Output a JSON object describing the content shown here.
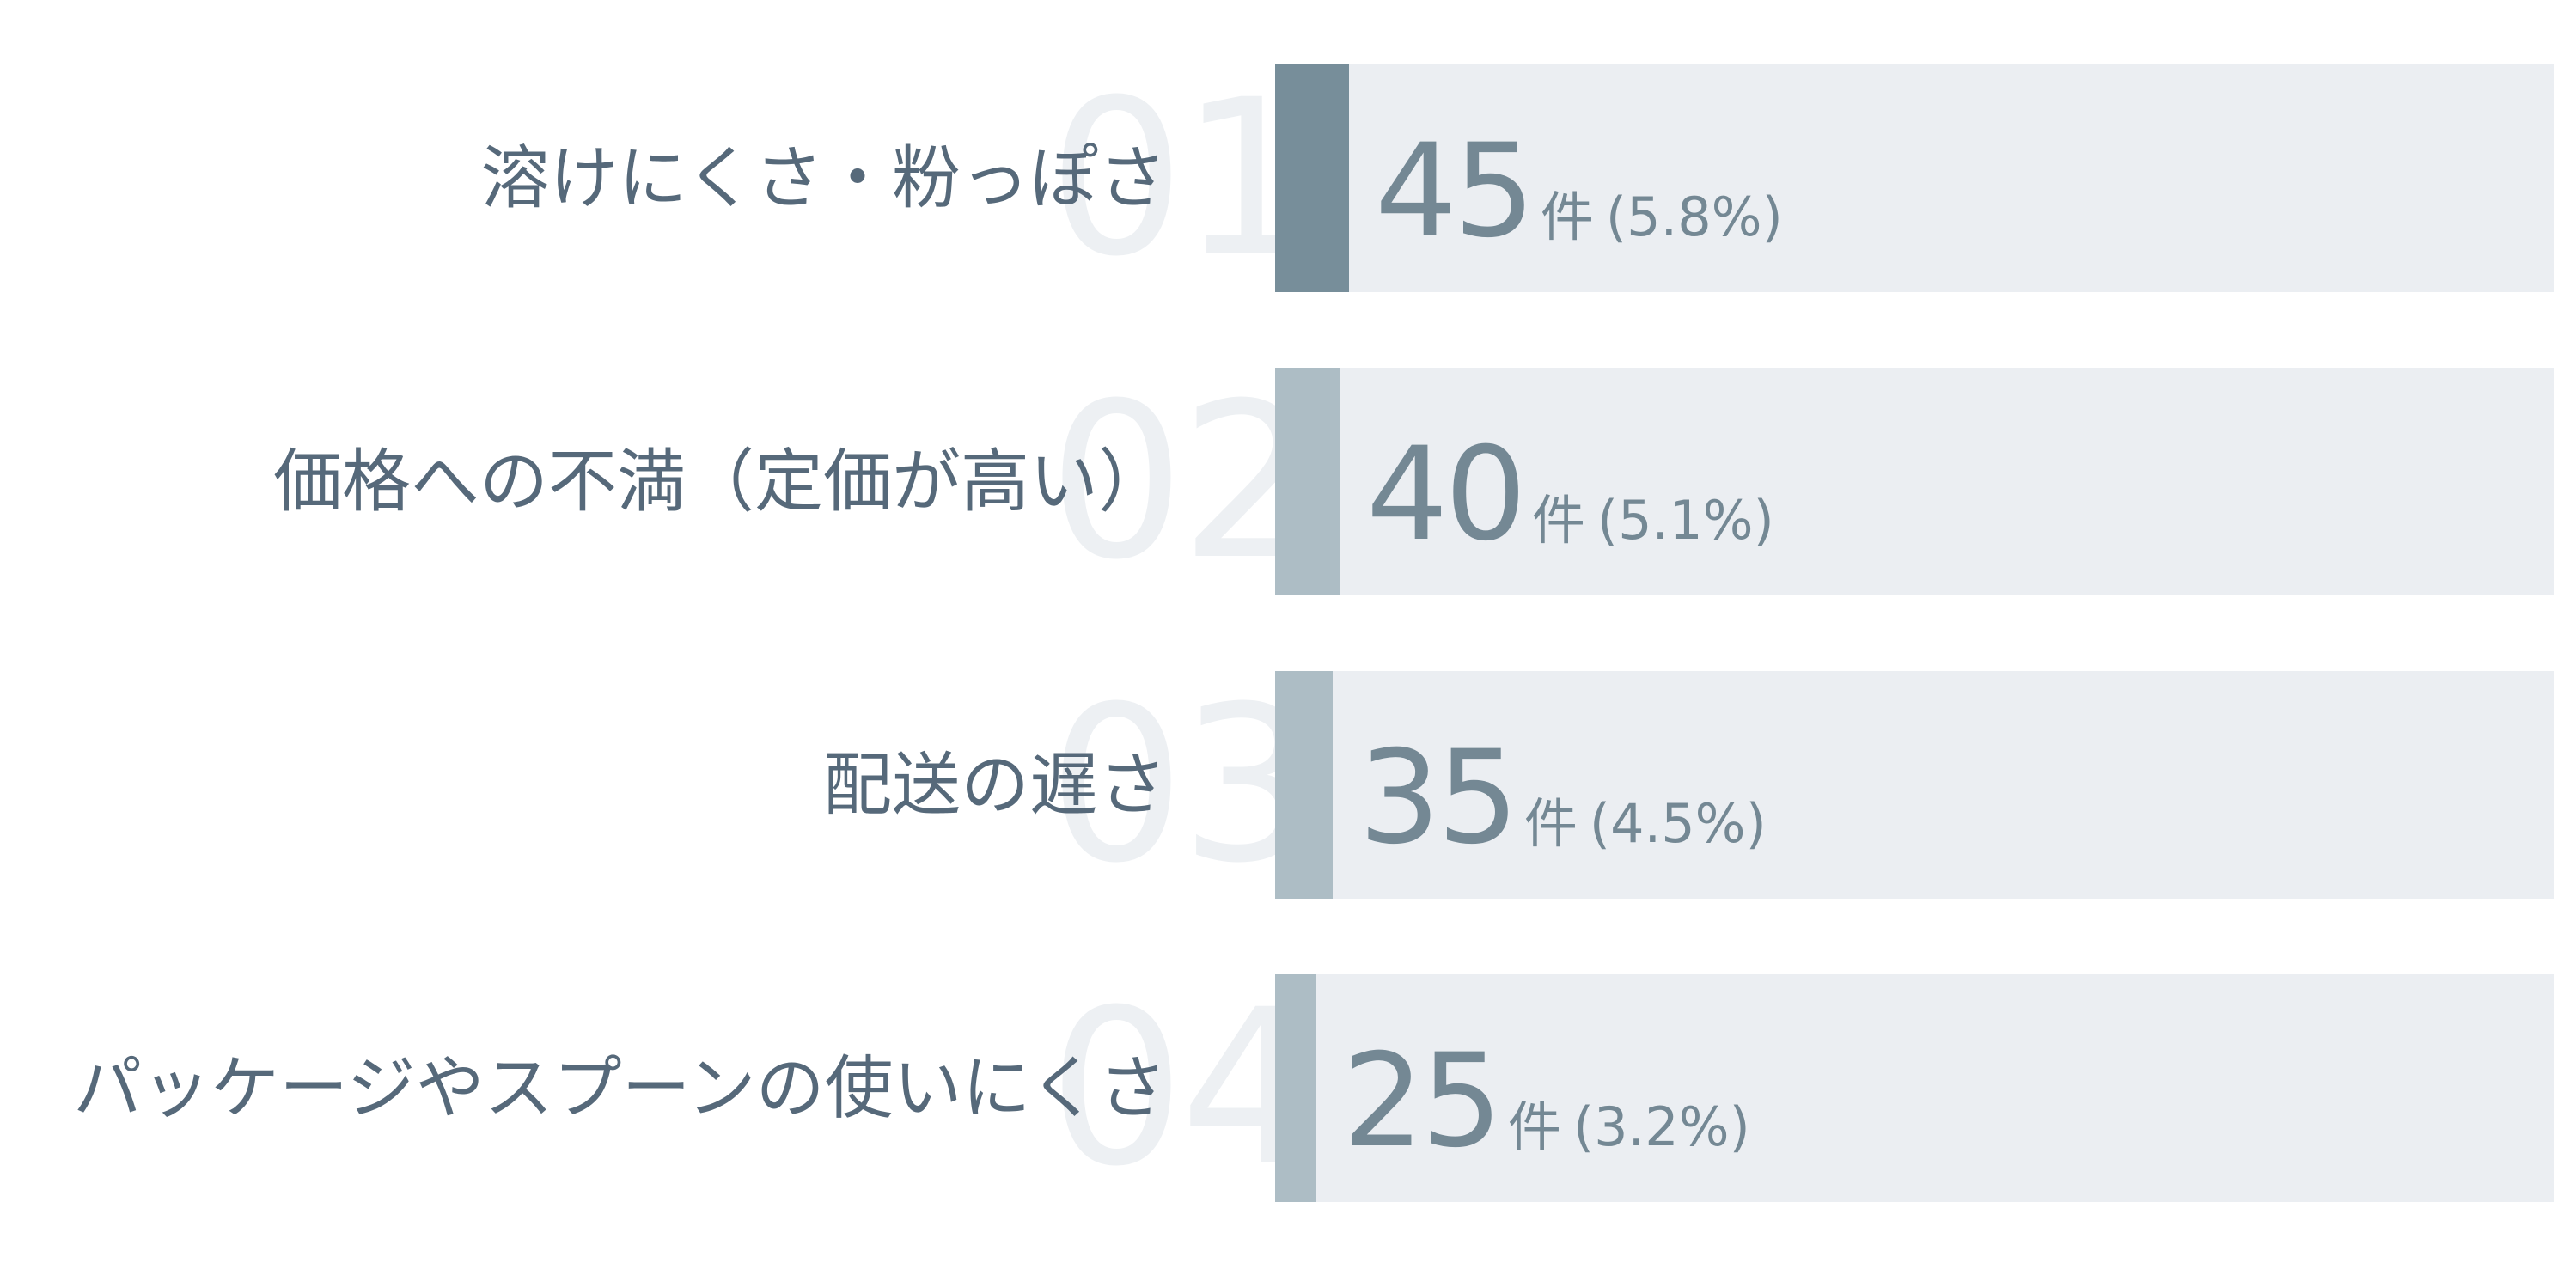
{
  "chart_data": {
    "type": "bar",
    "orientation": "horizontal",
    "categories": [
      "溶けにくさ・粉っぽさ",
      "価格への不満（定価が高い）",
      "配送の遅さ",
      "パッケージやスプーンの使いにくさ"
    ],
    "ranks": [
      "01",
      "02",
      "03",
      "04"
    ],
    "values": [
      45,
      40,
      35,
      25
    ],
    "unit": "件",
    "percent_labels": [
      "(5.8%)",
      "(5.1%)",
      "(4.5%)",
      "(3.2%)"
    ],
    "percents": [
      5.8,
      5.1,
      4.5,
      3.2
    ],
    "xlim": [
      0,
      100
    ],
    "grid": false,
    "legend": "none",
    "colors": {
      "highlight_bar": "#778e9a",
      "bar": "#adbdc5",
      "track": "#ebeef2",
      "label_text": "#56697a",
      "value_text": "#748894",
      "rank_text": "#edf0f3"
    }
  }
}
